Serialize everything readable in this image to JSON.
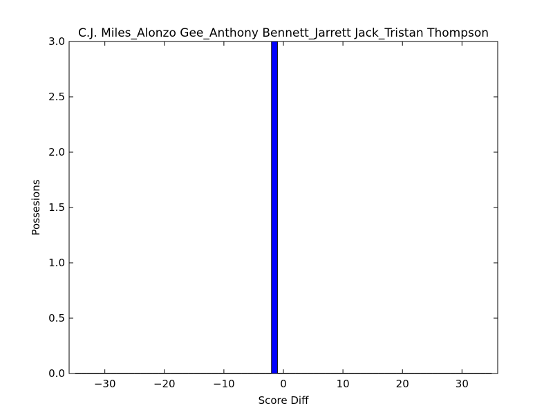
{
  "chart_data": {
    "type": "bar",
    "title": "C.J. Miles_Alonzo Gee_Anthony Bennett_Jarrett Jack_Tristan Thompson",
    "xlabel": "Score Diff",
    "ylabel": "Possesions",
    "xlim": [
      -36,
      36
    ],
    "ylim": [
      0,
      3
    ],
    "xticks": [
      "−30",
      "−20",
      "−10",
      "0",
      "10",
      "20",
      "30"
    ],
    "xtick_values": [
      -30,
      -20,
      -10,
      0,
      10,
      20,
      30
    ],
    "yticks": [
      "0.0",
      "0.5",
      "1.0",
      "1.5",
      "2.0",
      "2.5",
      "3.0"
    ],
    "ytick_values": [
      0,
      0.5,
      1,
      1.5,
      2,
      2.5,
      3
    ],
    "bin_width": 1,
    "bars": [
      {
        "x_start": -2,
        "x_end": -1,
        "value": 3
      }
    ],
    "grid": false,
    "colors": {
      "bar": "#0000ff",
      "edge": "#000000"
    }
  }
}
